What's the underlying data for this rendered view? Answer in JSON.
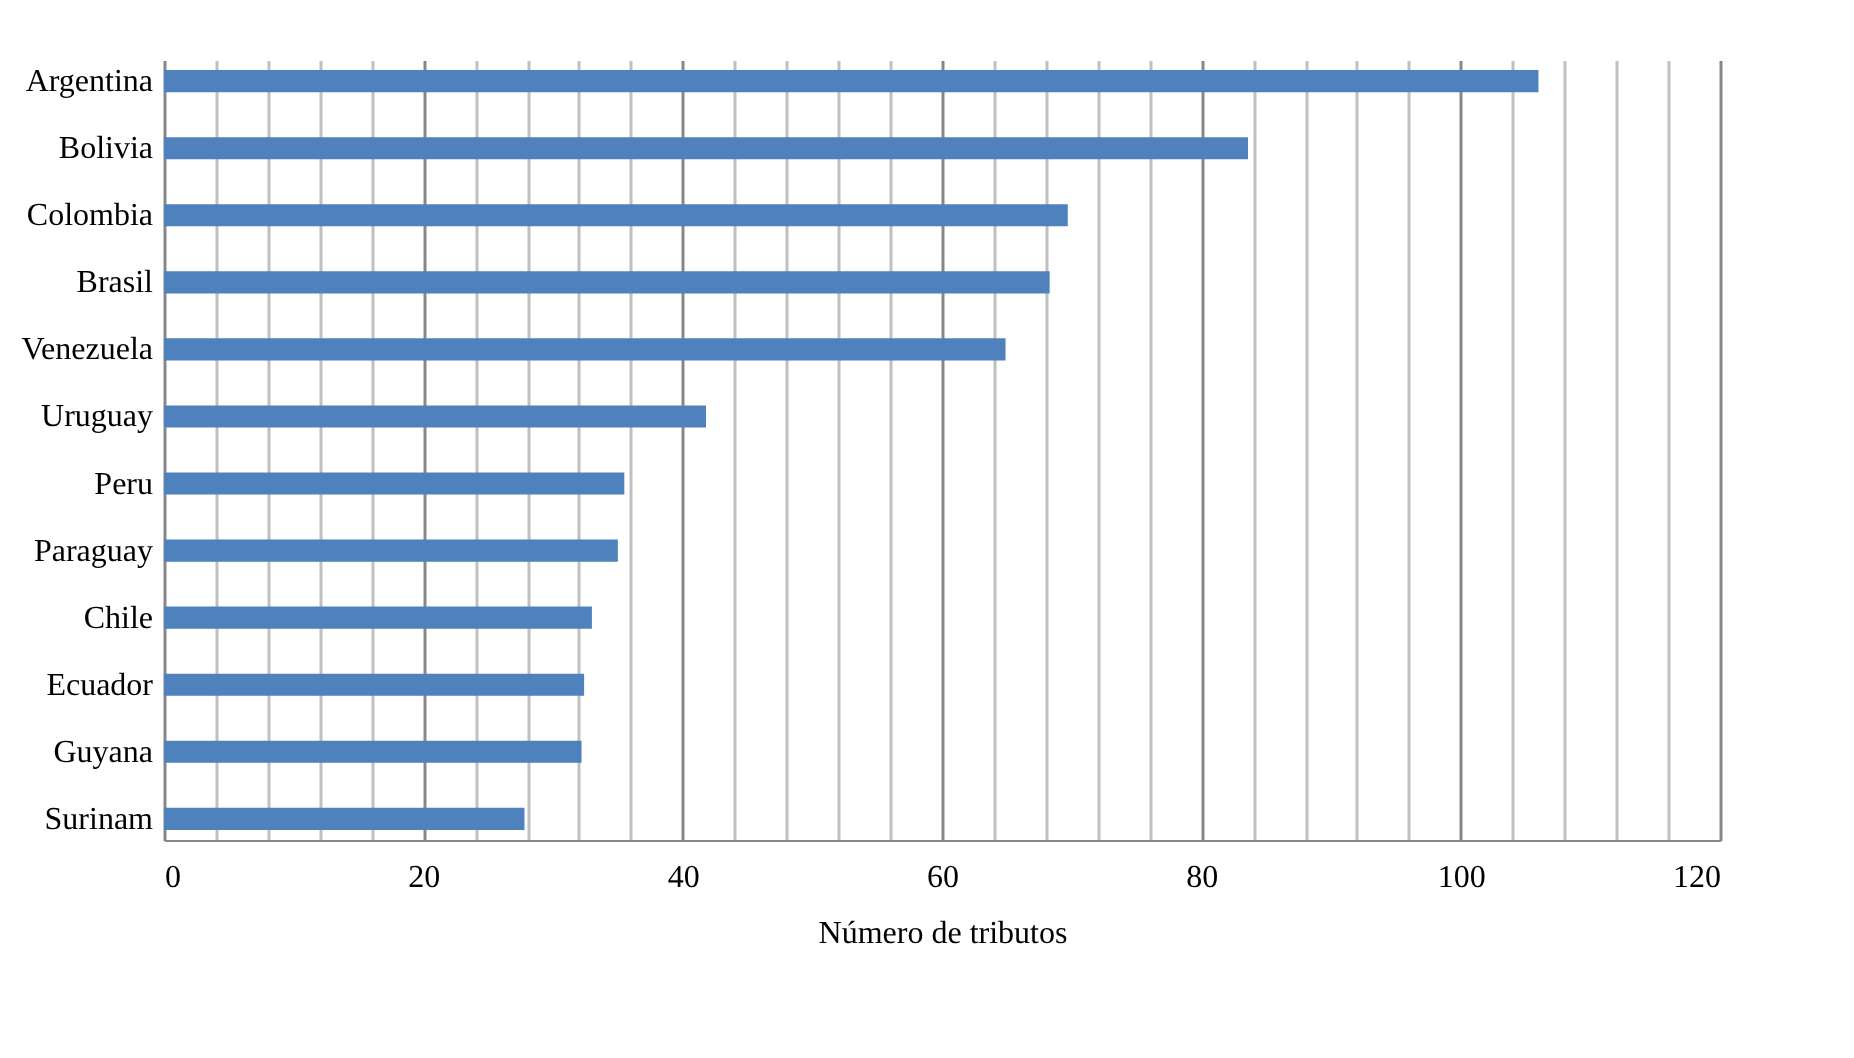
{
  "chart_data": {
    "type": "bar",
    "orientation": "horizontal",
    "xlabel": "Número de tributos",
    "categories": [
      "Argentina",
      "Bolivia",
      "Colombia",
      "Brasil",
      "Venezuela",
      "Uruguay",
      "Peru",
      "Paraguay",
      "Chile",
      "Ecuador",
      "Guyana",
      "Surinam"
    ],
    "values": [
      106.0,
      83.6,
      69.7,
      68.3,
      64.9,
      41.8,
      35.5,
      35.0,
      33.0,
      32.4,
      32.2,
      27.8
    ],
    "color": "#4f81bd",
    "xlim": [
      0,
      120
    ],
    "xticks": [
      0,
      {
        "value": 4,
        "label": null
      },
      {
        "value": 8,
        "label": null
      },
      {
        "value": 12,
        "label": null
      },
      {
        "value": 16,
        "label": null
      },
      20,
      {
        "value": 24,
        "label": null
      },
      {
        "value": 28,
        "label": null
      },
      {
        "value": 32,
        "label": null
      },
      {
        "value": 36,
        "label": null
      },
      40,
      {
        "value": 44,
        "label": null
      },
      {
        "value": 48,
        "label": null
      },
      {
        "value": 52,
        "label": null
      },
      {
        "value": 56,
        "label": null
      },
      60,
      {
        "value": 64,
        "label": null
      },
      {
        "value": 68,
        "label": null
      },
      {
        "value": 72,
        "label": null
      },
      {
        "value": 76,
        "label": null
      },
      80,
      {
        "value": 84,
        "label": null
      },
      {
        "value": 88,
        "label": null
      },
      {
        "value": 92,
        "label": null
      },
      {
        "value": 96,
        "label": null
      },
      100,
      {
        "value": 104,
        "label": null
      },
      {
        "value": 108,
        "label": null
      },
      {
        "value": 112,
        "label": null
      },
      {
        "value": 116,
        "label": null
      },
      120
    ],
    "grid": "x"
  }
}
